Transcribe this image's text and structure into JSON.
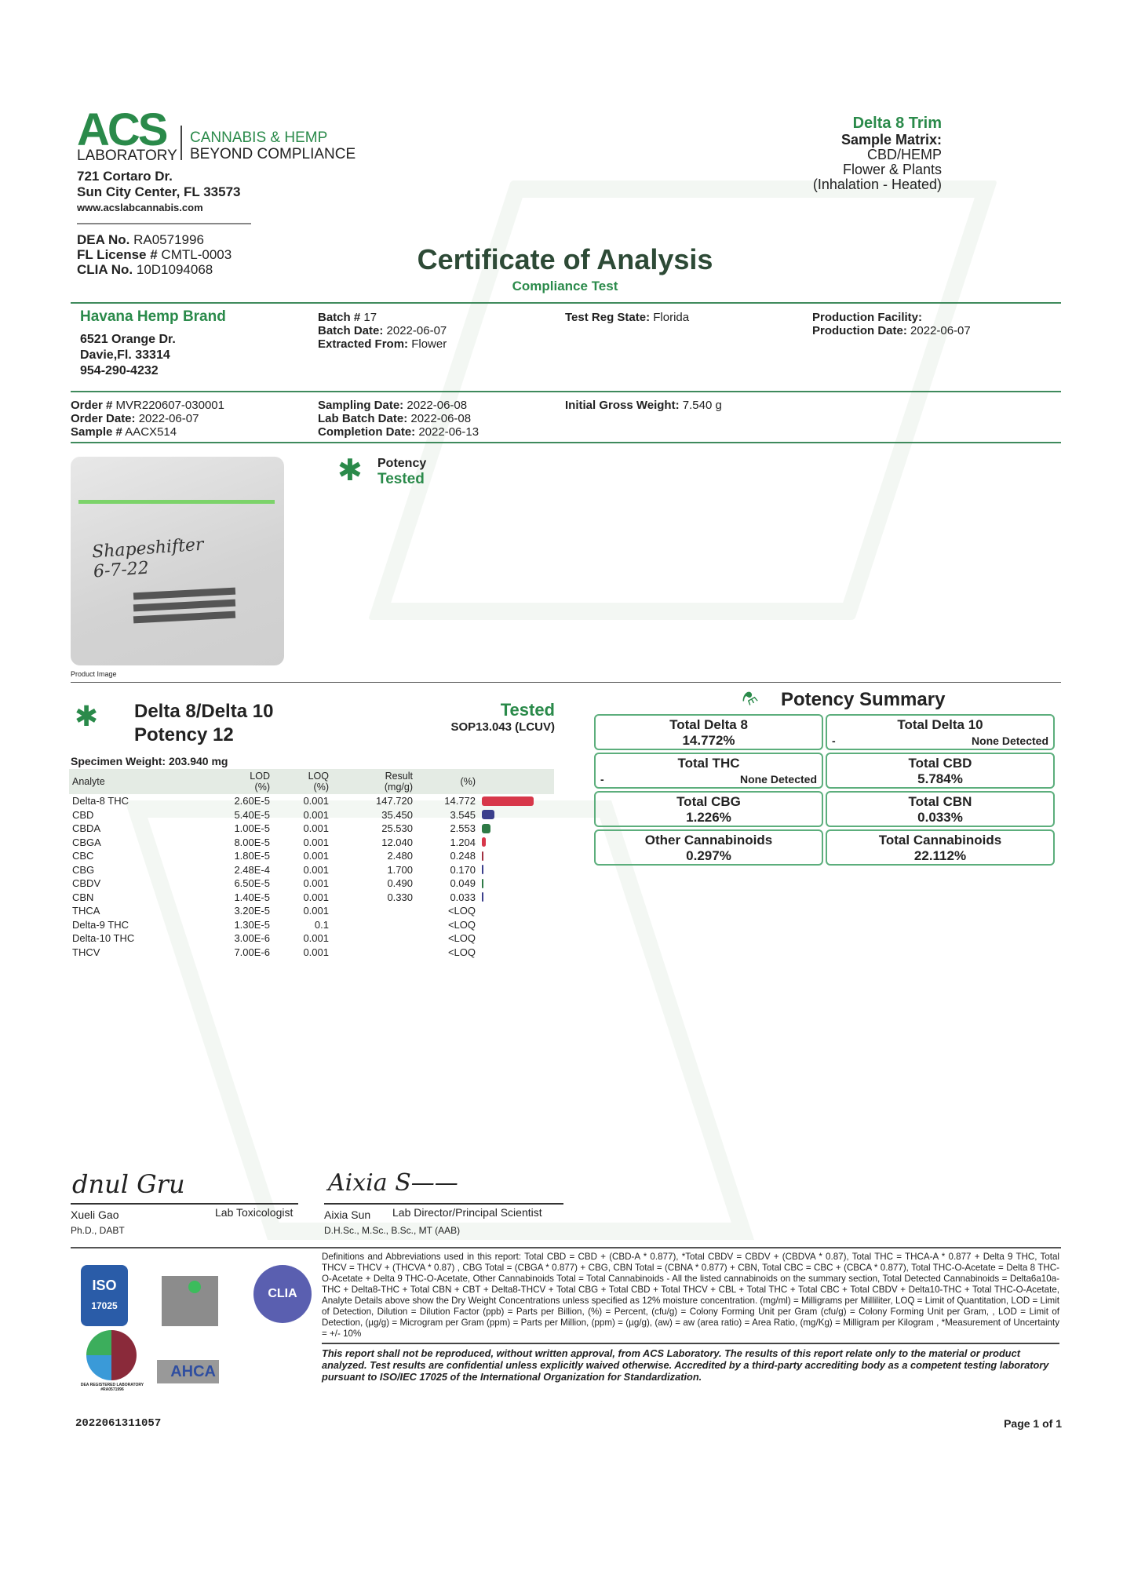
{
  "lab": {
    "logo_text": "ACS",
    "logo_sub": "LABORATORY",
    "tagline1": "CANNABIS & HEMP",
    "tagline2": "BEYOND COMPLIANCE",
    "address1": "721 Cortaro Dr.",
    "address2": "Sun City Center, FL 33573",
    "website": "www.acslabcannabis.com",
    "dea_label": "DEA No.",
    "dea": "RA0571996",
    "fl_label": "FL License #",
    "fl": "CMTL-0003",
    "clia_label": "CLIA No.",
    "clia": "10D1094068"
  },
  "product": {
    "name": "Delta 8 Trim",
    "matrix_label": "Sample Matrix:",
    "matrix1": "CBD/HEMP",
    "matrix2": "Flower & Plants",
    "matrix3": "(Inhalation - Heated)"
  },
  "title": "Certificate of Analysis",
  "subtitle": "Compliance Test",
  "client": {
    "name": "Havana Hemp Brand",
    "address1": "6521 Orange Dr.",
    "address2": "Davie,Fl. 33314",
    "phone": "954-290-4232"
  },
  "batch": {
    "batch_label": "Batch #",
    "batch": "17",
    "batch_date_label": "Batch Date:",
    "batch_date": "2022-06-07",
    "extracted_label": "Extracted From:",
    "extracted": "Flower",
    "reg_label": "Test Reg State:",
    "reg": "Florida",
    "facility_label": "Production Facility:",
    "prod_date_label": "Production Date:",
    "prod_date": "2022-06-07"
  },
  "order": {
    "order_label": "Order #",
    "order": "MVR220607-030001",
    "order_date_label": "Order Date:",
    "order_date": "2022-06-07",
    "sample_label": "Sample #",
    "sample": "AACX514",
    "sampling_label": "Sampling Date:",
    "sampling": "2022-06-08",
    "labbatch_label": "Lab Batch Date:",
    "labbatch": "2022-06-08",
    "completion_label": "Completion Date:",
    "completion": "2022-06-13",
    "gross_label": "Initial Gross Weight:",
    "gross": "7.540 g"
  },
  "image": {
    "caption": "Product Image",
    "label_text": "Shapeshifter 6-7-22"
  },
  "potency_badge": {
    "label": "Potency",
    "status": "Tested"
  },
  "potency": {
    "title1": "Delta 8/Delta 10",
    "title2": "Potency 12",
    "status": "Tested",
    "method": "SOP13.043 (LCUV)",
    "specimen": "Specimen Weight: 203.940 mg",
    "headers": {
      "analyte": "Analyte",
      "lod": "LOD",
      "lod_u": "(%)",
      "loq": "LOQ",
      "loq_u": "(%)",
      "result": "Result",
      "result_u": "(mg/g)",
      "pct": "(%)"
    },
    "rows": [
      {
        "analyte": "Delta-8 THC",
        "lod": "2.60E-5",
        "loq": "0.001",
        "result": "147.720",
        "pct": "14.772",
        "bar": 14.772,
        "color": "#d7374a"
      },
      {
        "analyte": "CBD",
        "lod": "5.40E-5",
        "loq": "0.001",
        "result": "35.450",
        "pct": "3.545",
        "bar": 3.545,
        "color": "#3b3f8c"
      },
      {
        "analyte": "CBDA",
        "lod": "1.00E-5",
        "loq": "0.001",
        "result": "25.530",
        "pct": "2.553",
        "bar": 2.553,
        "color": "#2e7a46"
      },
      {
        "analyte": "CBGA",
        "lod": "8.00E-5",
        "loq": "0.001",
        "result": "12.040",
        "pct": "1.204",
        "bar": 1.204,
        "color": "#d7374a"
      },
      {
        "analyte": "CBC",
        "lod": "1.80E-5",
        "loq": "0.001",
        "result": "2.480",
        "pct": "0.248",
        "bar": 0.248,
        "color": "#a03040"
      },
      {
        "analyte": "CBG",
        "lod": "2.48E-4",
        "loq": "0.001",
        "result": "1.700",
        "pct": "0.170",
        "bar": 0.17,
        "color": "#3b3f8c"
      },
      {
        "analyte": "CBDV",
        "lod": "6.50E-5",
        "loq": "0.001",
        "result": "0.490",
        "pct": "0.049",
        "bar": 0.049,
        "color": "#2e7a46"
      },
      {
        "analyte": "CBN",
        "lod": "1.40E-5",
        "loq": "0.001",
        "result": "0.330",
        "pct": "0.033",
        "bar": 0.033,
        "color": "#3b3f8c"
      },
      {
        "analyte": "THCA",
        "lod": "3.20E-5",
        "loq": "0.001",
        "result": "",
        "pct": "<LOQ"
      },
      {
        "analyte": "Delta-9 THC",
        "lod": "1.30E-5",
        "loq": "0.1",
        "result": "",
        "pct": "<LOQ"
      },
      {
        "analyte": "Delta-10 THC",
        "lod": "3.00E-6",
        "loq": "0.001",
        "result": "",
        "pct": "<LOQ"
      },
      {
        "analyte": "THCV",
        "lod": "7.00E-6",
        "loq": "0.001",
        "result": "",
        "pct": "<LOQ"
      }
    ]
  },
  "summary": {
    "title": "Potency Summary",
    "items": [
      {
        "label": "Total Delta 8",
        "value": "14.772%"
      },
      {
        "label": "Total Delta 10",
        "dash": "-",
        "value": "None Detected"
      },
      {
        "label": "Total THC",
        "dash": "-",
        "value": "None Detected"
      },
      {
        "label": "Total CBD",
        "value": "5.784%"
      },
      {
        "label": "Total CBG",
        "value": "1.226%"
      },
      {
        "label": "Total CBN",
        "value": "0.033%"
      },
      {
        "label": "Other Cannabinoids",
        "value": "0.297%"
      },
      {
        "label": "Total Cannabinoids",
        "value": "22.112%"
      }
    ]
  },
  "signers": [
    {
      "name": "Xueli Gao",
      "role": "Lab Toxicologist",
      "creds": "Ph.D., DABT"
    },
    {
      "name": "Aixia Sun",
      "role": "Lab Director/Principal Scientist",
      "creds": "D.H.Sc., M.Sc., B.Sc., MT (AAB)"
    }
  ],
  "logos": {
    "iso": "ISO",
    "iso_num": "17025",
    "dea": "DEA REGISTERED LABORATORY #RA0571996",
    "ahca": "AHCA",
    "clia": "CLIA"
  },
  "definitions": "Definitions and Abbreviations used in this report: Total CBD = CBD + (CBD-A * 0.877), *Total CBDV = CBDV + (CBDVA * 0.87), Total THC = THCA-A * 0.877 + Delta 9 THC, Total THCV = THCV + (THCVA * 0.87) , CBG Total = (CBGA * 0.877) + CBG, CBN Total = (CBNA * 0.877) + CBN, Total CBC = CBC + (CBCA * 0.877), Total THC-O-Acetate = Delta 8 THC-O-Acetate + Delta 9 THC-O-Acetate, Other Cannabinoids Total = Total Cannabinoids - All the listed cannabinoids on the summary section, Total Detected Cannabinoids = Delta6a10a-THC + Delta8-THC + Total CBN + CBT + Delta8-THCV + Total CBG + Total CBD + Total THCV + CBL + Total THC + Total CBC + Total CBDV + Delta10-THC + Total THC-O-Acetate, Analyte Details above show the Dry Weight Concentrations unless specified as 12% moisture concentration. (mg/ml) = Milligrams per Milliliter, LOQ = Limit of Quantitation, LOD = Limit of Detection, Dilution = Dilution Factor (ppb) = Parts per Billion, (%) = Percent, (cfu/g) = Colony Forming Unit per Gram (cfu/g) = Colony Forming Unit per Gram, , LOD = Limit of Detection, (µg/g) = Microgram per Gram (ppm) = Parts per Million, (ppm) = (µg/g), (aw) = aw (area ratio) = Area Ratio, (mg/Kg) = Milligram per Kilogram , *Measurement of Uncertainty = +/- 10%",
  "disclaimer": "This report shall not be reproduced, without written approval, from ACS Laboratory. The results of this report relate only to the material or product analyzed. Test results are confidential unless explicitly waived otherwise. Accredited by a third-party accrediting body as a competent testing laboratory pursuant to ISO/IEC 17025 of the International Organization for Standardization.",
  "footer": {
    "report_id": "2022061311057",
    "page": "Page 1 of 1"
  }
}
